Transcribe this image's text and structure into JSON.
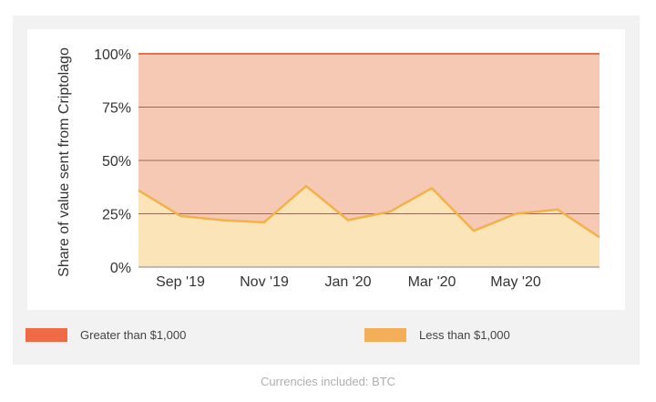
{
  "chart_data": {
    "type": "area",
    "stacked": true,
    "percent": true,
    "x": [
      "2019-08",
      "2019-09",
      "2019-10",
      "2019-11",
      "2019-12",
      "2020-01",
      "2020-02",
      "2020-03",
      "2020-04",
      "2020-05",
      "2020-06",
      "2020-07"
    ],
    "x_tick_labels": [
      "Sep '19",
      "Nov '19",
      "Jan '20",
      "Mar '20",
      "May '20"
    ],
    "ylabel": "Share of value sent from Criptolago",
    "y_ticks": [
      "0%",
      "25%",
      "50%",
      "75%",
      "100%"
    ],
    "ylim": [
      0,
      100
    ],
    "grid": true,
    "legend_position": "bottom",
    "series": [
      {
        "name": "Less than $1,000",
        "color": "#f4ae58",
        "values": [
          36,
          24,
          22,
          21,
          38,
          22,
          26,
          37,
          17,
          25,
          27,
          14
        ]
      },
      {
        "name": "Greater than $1,000",
        "color": "#f06a45",
        "values": [
          64,
          76,
          78,
          79,
          62,
          78,
          74,
          63,
          83,
          75,
          73,
          86
        ]
      }
    ]
  },
  "legend": {
    "greater_label": "Greater than $1,000",
    "less_label": "Less than $1,000"
  },
  "footer": {
    "text": "Currencies included: BTC"
  }
}
